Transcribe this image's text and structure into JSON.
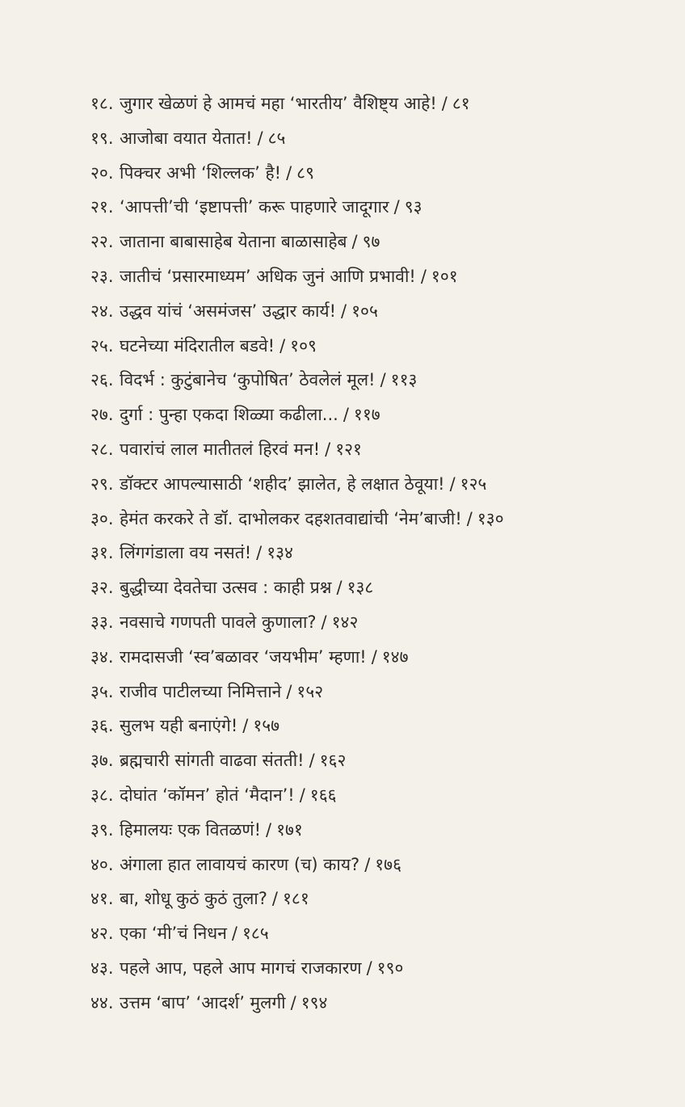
{
  "entries": [
    {
      "number": "१८.",
      "title": "जुगार खेळणं हे आमचं महा ‘भारतीय’ वैशिष्ट्य आहे!",
      "page": "८१"
    },
    {
      "number": "१९.",
      "title": "आजोबा वयात येतात!",
      "page": "८५"
    },
    {
      "number": "२०.",
      "title": "पिक्चर अभी ‘शिल्लक’ है!",
      "page": "८९"
    },
    {
      "number": "२१.",
      "title": "‘आपत्ती’ची ‘इष्टापत्ती’ करू पाहणारे जादूगार",
      "page": "९३"
    },
    {
      "number": "२२.",
      "title": "जाताना बाबासाहेब येताना बाळासाहेब",
      "page": "९७"
    },
    {
      "number": "२३.",
      "title": "जातीचं ‘प्रसारमाध्यम’ अधिक जुनं आणि प्रभावी!",
      "page": "१०१"
    },
    {
      "number": "२४.",
      "title": "उद्धव यांचं ‘असमंजस’ उद्धार कार्य!",
      "page": "१०५"
    },
    {
      "number": "२५.",
      "title": "घटनेच्या मंदिरातील बडवे!",
      "page": "१०९"
    },
    {
      "number": "२६.",
      "title": "विदर्भ : कुटुंबानेच ‘कुपोषित’ ठेवलेलं मूल!",
      "page": "११३"
    },
    {
      "number": "२७.",
      "title": "दुर्गा : पुन्हा एकदा शिळ्या कढीला...",
      "page": "११७"
    },
    {
      "number": "२८.",
      "title": "पवारांचं लाल मातीतलं हिरवं मन!",
      "page": "१२१"
    },
    {
      "number": "२९.",
      "title": "डॉक्टर आपल्यासाठी ‘शहीद’ झालेत, हे लक्षात ठेवूया!",
      "page": "१२५"
    },
    {
      "number": "३०.",
      "title": "हेमंत करकरे ते डॉ. दाभोलकर दहशतवाद्यांची ‘नेम’बाजी!",
      "page": "१३०"
    },
    {
      "number": "३१.",
      "title": "लिंगगंडाला वय नसतं!",
      "page": "१३४"
    },
    {
      "number": "३२.",
      "title": "बुद्धीच्या देवतेचा उत्सव : काही प्रश्न",
      "page": "१३८"
    },
    {
      "number": "३३.",
      "title": "नवसाचे गणपती पावले कुणाला?",
      "page": "१४२"
    },
    {
      "number": "३४.",
      "title": "रामदासजी ‘स्व’बळावर ‘जयभीम’ म्हणा!",
      "page": "१४७"
    },
    {
      "number": "३५.",
      "title": "राजीव पाटीलच्या निमित्ताने",
      "page": "१५२"
    },
    {
      "number": "३६.",
      "title": "सुलभ यही बनाएंगे!",
      "page": "१५७"
    },
    {
      "number": "३७.",
      "title": "ब्रह्मचारी सांगती वाढवा संतती!",
      "page": "१६२"
    },
    {
      "number": "३८.",
      "title": "दोघांत ‘कॉमन’ होतं ‘मैदान’!",
      "page": "१६६"
    },
    {
      "number": "३९.",
      "title": "हिमालयः एक वितळणं!",
      "page": "१७१"
    },
    {
      "number": "४०.",
      "title": "अंगाला हात लावायचं कारण (च) काय?",
      "page": "१७६"
    },
    {
      "number": "४१.",
      "title": "बा, शोधू कुठं कुठं तुला?",
      "page": "१८१"
    },
    {
      "number": "४२.",
      "title": "एका ‘मी’चं निधन",
      "page": "१८५"
    },
    {
      "number": "४३.",
      "title": "पहले आप, पहले आप मागचं राजकारण",
      "page": "१९०"
    },
    {
      "number": "४४.",
      "title": "उत्तम ‘बाप’ ‘आदर्श’ मुलगी",
      "page": "१९४"
    }
  ],
  "separator": "/"
}
